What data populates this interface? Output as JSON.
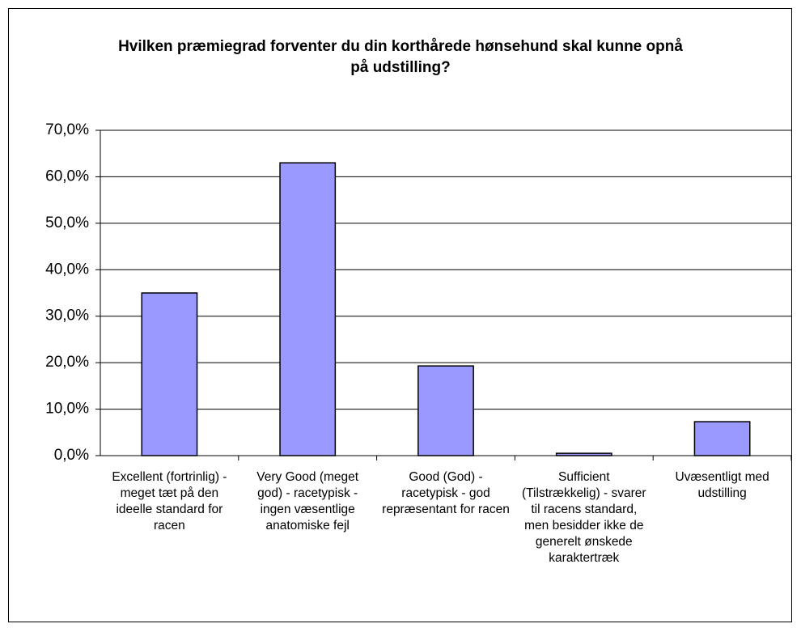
{
  "chart_data": {
    "type": "bar",
    "title": "Hvilken præmiegrad forventer du din korthårede hønsehund skal kunne opnå på udstilling?",
    "categories": [
      "Excellent (fortrinlig) - meget tæt på den ideelle standard for racen",
      "Very Good (meget god) - racetypisk - ingen væsentlige anatomiske fejl",
      "Good (God) - racetypisk - god repræsentant for racen",
      "Sufficient (Tilstrækkelig) - svarer til racens standard, men besidder ikke de generelt ønskede karaktertræk",
      "Uvæsentligt med udstilling"
    ],
    "values": [
      35.0,
      63.0,
      19.3,
      0.5,
      7.3
    ],
    "color": "#9999ff",
    "ylim": [
      0,
      70
    ],
    "yticks": [
      {
        "value": 0,
        "label": "0,0%"
      },
      {
        "value": 10,
        "label": "10,0%"
      },
      {
        "value": 20,
        "label": "20,0%"
      },
      {
        "value": 30,
        "label": "30,0%"
      },
      {
        "value": 40,
        "label": "40,0%"
      },
      {
        "value": 50,
        "label": "50,0%"
      },
      {
        "value": 60,
        "label": "60,0%"
      },
      {
        "value": 70,
        "label": "70,0%"
      }
    ],
    "grid": true
  }
}
